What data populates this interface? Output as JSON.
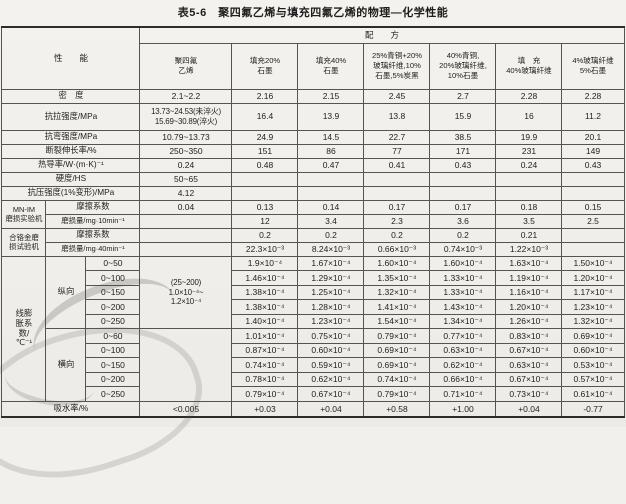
{
  "title": "表5-6　聚四氟乙烯与填充四氟乙烯的物理—化学性能",
  "table": {
    "header_rows": [
      [
        {
          "t": "性　　能",
          "cs": 3,
          "rs": 2,
          "name": "property-header"
        },
        {
          "t": "配　　方",
          "cs": 7,
          "name": "formula-header"
        }
      ],
      [
        {
          "t": "聚四氟\n乙烯",
          "name": "col-header-ptfe"
        },
        {
          "t": "填充20%\n石墨",
          "name": "col-header-graphite-20"
        },
        {
          "t": "填充40%\n石墨",
          "name": "col-header-graphite-40"
        },
        {
          "t": "25%青铜+20%\n玻璃纤维,10%\n石墨,5%炭黑",
          "name": "col-header-bronze-25-mix"
        },
        {
          "t": "40%青铜,\n20%玻璃纤维,\n10%石墨",
          "name": "col-header-bronze-40-mix"
        },
        {
          "t": "填　充\n40%玻璃纤维",
          "name": "col-header-glassfiber-40"
        },
        {
          "t": "4%玻璃纤维\n5%石墨",
          "name": "col-header-glassfiber-4-graphite-5"
        }
      ]
    ],
    "body_rows": [
      [
        {
          "t": "密　度",
          "cs": 3,
          "cls": "lab",
          "name": "row-label-density"
        },
        {
          "t": "2.1~2.2"
        },
        {
          "t": "2.16"
        },
        {
          "t": "2.15"
        },
        {
          "t": "2.45"
        },
        {
          "t": "2.7"
        },
        {
          "t": "2.28"
        },
        {
          "t": "2.28"
        }
      ],
      [
        {
          "t": "抗拉强度/MPa",
          "cs": 3,
          "cls": "lab",
          "name": "row-label-tensile-strength"
        },
        {
          "t": "13.73~24.53(未淬火)\n15.69~30.89(淬火)",
          "cls": "exp"
        },
        {
          "t": "16.4"
        },
        {
          "t": "13.9"
        },
        {
          "t": "13.8"
        },
        {
          "t": "15.9"
        },
        {
          "t": "16"
        },
        {
          "t": "11.2"
        }
      ],
      [
        {
          "t": "抗弯强度/MPa",
          "cs": 3,
          "cls": "lab",
          "name": "row-label-bending-strength"
        },
        {
          "t": "10.79~13.73"
        },
        {
          "t": "24.9"
        },
        {
          "t": "14.5"
        },
        {
          "t": "22.7"
        },
        {
          "t": "38.5"
        },
        {
          "t": "19.9"
        },
        {
          "t": "20.1"
        }
      ],
      [
        {
          "t": "断裂伸长率/%",
          "cs": 3,
          "cls": "lab",
          "name": "row-label-elongation"
        },
        {
          "t": "250~350"
        },
        {
          "t": "151"
        },
        {
          "t": "86"
        },
        {
          "t": "77"
        },
        {
          "t": "171"
        },
        {
          "t": "231"
        },
        {
          "t": "149"
        }
      ],
      [
        {
          "t": "热导率/W·(m·K)⁻¹",
          "cs": 3,
          "cls": "lab",
          "name": "row-label-thermal-conductivity"
        },
        {
          "t": "0.24"
        },
        {
          "t": "0.48"
        },
        {
          "t": "0.47"
        },
        {
          "t": "0.41"
        },
        {
          "t": "0.43"
        },
        {
          "t": "0.24"
        },
        {
          "t": "0.43"
        }
      ],
      [
        {
          "t": "硬度/HS",
          "cs": 3,
          "cls": "lab",
          "name": "row-label-hardness"
        },
        {
          "t": "50~65"
        },
        {
          "t": ""
        },
        {
          "t": ""
        },
        {
          "t": ""
        },
        {
          "t": ""
        },
        {
          "t": ""
        },
        {
          "t": ""
        }
      ],
      [
        {
          "t": "抗压强度(1%变形)/MPa",
          "cs": 3,
          "cls": "lab",
          "name": "row-label-compressive-strength"
        },
        {
          "t": "4.12"
        },
        {
          "t": ""
        },
        {
          "t": ""
        },
        {
          "t": ""
        },
        {
          "t": ""
        },
        {
          "t": ""
        },
        {
          "t": ""
        }
      ],
      [
        {
          "t": "MN-IM\n磨损实验机",
          "rs": 2,
          "cls": "sm",
          "name": "row-group-mn-im-machine"
        },
        {
          "t": "摩擦系数",
          "cs": 2,
          "cls": "lab",
          "name": "row-label-friction-coefficient"
        },
        {
          "t": "0.04"
        },
        {
          "t": "0.13"
        },
        {
          "t": "0.14"
        },
        {
          "t": "0.17"
        },
        {
          "t": "0.17"
        },
        {
          "t": "0.18"
        },
        {
          "t": "0.15"
        }
      ],
      [
        {
          "t": "磨损量/mg·10min⁻¹",
          "cs": 2,
          "cls": "sm",
          "name": "row-label-wear-amount-10min"
        },
        {
          "t": ""
        },
        {
          "t": "12"
        },
        {
          "t": "3.4"
        },
        {
          "t": "2.3"
        },
        {
          "t": "3.6"
        },
        {
          "t": "3.5"
        },
        {
          "t": "2.5"
        }
      ],
      [
        {
          "t": "合铬金磨\n损试验机",
          "rs": 2,
          "cls": "sm",
          "name": "row-group-alloy-wear-machine"
        },
        {
          "t": "摩擦系数",
          "cs": 2,
          "cls": "lab",
          "name": "row-label-friction-coefficient-2"
        },
        {
          "t": ""
        },
        {
          "t": "0.2"
        },
        {
          "t": "0.2"
        },
        {
          "t": "0.2"
        },
        {
          "t": "0.2"
        },
        {
          "t": "0.21"
        },
        {
          "t": ""
        }
      ],
      [
        {
          "t": "磨损量/mg·40min⁻¹",
          "cs": 2,
          "cls": "sm",
          "name": "row-label-wear-amount-40min"
        },
        {
          "t": ""
        },
        {
          "t": "22.3×10⁻³"
        },
        {
          "t": "8.24×10⁻³"
        },
        {
          "t": "0.66×10⁻³"
        },
        {
          "t": "0.74×10⁻³"
        },
        {
          "t": "1.22×10⁻³"
        },
        {
          "t": ""
        }
      ],
      [
        {
          "t": "线膨\n胀系\n数/\n℃⁻¹",
          "rs": 10,
          "cls": "lab",
          "name": "row-group-linear-expansion"
        },
        {
          "t": "纵向",
          "rs": 5,
          "cls": "lab",
          "name": "row-group-longitudinal"
        },
        {
          "t": "0~50",
          "name": "temp-range"
        },
        {
          "t": "(25~200)\n1.0×10⁻⁴~\n1.2×10⁻⁴",
          "rs": 5,
          "cls": "exp"
        },
        {
          "t": "1.9×10⁻⁴"
        },
        {
          "t": "1.67×10⁻⁴"
        },
        {
          "t": "1.60×10⁻⁴"
        },
        {
          "t": "1.60×10⁻⁴"
        },
        {
          "t": "1.63×10⁻⁴"
        },
        {
          "t": "1.50×10⁻⁴"
        }
      ],
      [
        {
          "t": "0~100",
          "name": "temp-range"
        },
        {
          "t": "1.46×10⁻⁴"
        },
        {
          "t": "1.29×10⁻⁴"
        },
        {
          "t": "1.35×10⁻⁴"
        },
        {
          "t": "1.33×10⁻⁴"
        },
        {
          "t": "1.19×10⁻⁴"
        },
        {
          "t": "1.20×10⁻⁴"
        }
      ],
      [
        {
          "t": "0~150",
          "name": "temp-range"
        },
        {
          "t": "1.38×10⁻⁴"
        },
        {
          "t": "1.25×10⁻⁴"
        },
        {
          "t": "1.32×10⁻⁴"
        },
        {
          "t": "1.33×10⁻⁴"
        },
        {
          "t": "1.16×10⁻⁴"
        },
        {
          "t": "1.17×10⁻⁴"
        }
      ],
      [
        {
          "t": "0~200",
          "name": "temp-range"
        },
        {
          "t": "1.38×10⁻⁴"
        },
        {
          "t": "1.28×10⁻⁴"
        },
        {
          "t": "1.41×10⁻⁴"
        },
        {
          "t": "1.43×10⁻⁴"
        },
        {
          "t": "1.20×10⁻⁴"
        },
        {
          "t": "1.23×10⁻⁴"
        }
      ],
      [
        {
          "t": "0~250",
          "name": "temp-range"
        },
        {
          "t": "1.40×10⁻⁴"
        },
        {
          "t": "1.23×10⁻⁴"
        },
        {
          "t": "1.54×10⁻⁴"
        },
        {
          "t": "1.34×10⁻⁴"
        },
        {
          "t": "1.26×10⁻⁴"
        },
        {
          "t": "1.32×10⁻⁴"
        }
      ],
      [
        {
          "t": "横向",
          "rs": 5,
          "cls": "lab",
          "name": "row-group-transverse"
        },
        {
          "t": "0~60",
          "name": "temp-range"
        },
        {
          "t": "",
          "rs": 5
        },
        {
          "t": "1.01×10⁻⁴"
        },
        {
          "t": "0.75×10⁻⁴"
        },
        {
          "t": "0.79×10⁻⁴"
        },
        {
          "t": "0.77×10⁻⁴"
        },
        {
          "t": "0.83×10⁻⁴"
        },
        {
          "t": "0.69×10⁻⁴"
        }
      ],
      [
        {
          "t": "0~100",
          "name": "temp-range"
        },
        {
          "t": "0.87×10⁻⁴"
        },
        {
          "t": "0.60×10⁻⁴"
        },
        {
          "t": "0.69×10⁻⁴"
        },
        {
          "t": "0.63×10⁻⁴"
        },
        {
          "t": "0.67×10⁻⁴"
        },
        {
          "t": "0.60×10⁻⁴"
        }
      ],
      [
        {
          "t": "0~150",
          "name": "temp-range"
        },
        {
          "t": "0.74×10⁻⁴"
        },
        {
          "t": "0.59×10⁻⁴"
        },
        {
          "t": "0.69×10⁻⁴"
        },
        {
          "t": "0.62×10⁻⁴"
        },
        {
          "t": "0.63×10⁻⁴"
        },
        {
          "t": "0.53×10⁻⁴"
        }
      ],
      [
        {
          "t": "0~200",
          "name": "temp-range"
        },
        {
          "t": "0.78×10⁻⁴"
        },
        {
          "t": "0.62×10⁻⁴"
        },
        {
          "t": "0.74×10⁻⁴"
        },
        {
          "t": "0.66×10⁻⁴"
        },
        {
          "t": "0.67×10⁻⁴"
        },
        {
          "t": "0.57×10⁻⁴"
        }
      ],
      [
        {
          "t": "0~250",
          "name": "temp-range"
        },
        {
          "t": "0.79×10⁻⁴"
        },
        {
          "t": "0.67×10⁻⁴"
        },
        {
          "t": "0.79×10⁻⁴"
        },
        {
          "t": "0.71×10⁻⁴"
        },
        {
          "t": "0.73×10⁻⁴"
        },
        {
          "t": "0.61×10⁻⁴"
        }
      ],
      [
        {
          "t": "吸水率/%",
          "cs": 3,
          "cls": "lab",
          "name": "row-label-water-absorption"
        },
        {
          "t": "<0.005"
        },
        {
          "t": "+0.03"
        },
        {
          "t": "+0.04"
        },
        {
          "t": "+0.58"
        },
        {
          "t": "+1.00"
        },
        {
          "t": "+0.04"
        },
        {
          "t": "-0.77"
        }
      ]
    ]
  }
}
